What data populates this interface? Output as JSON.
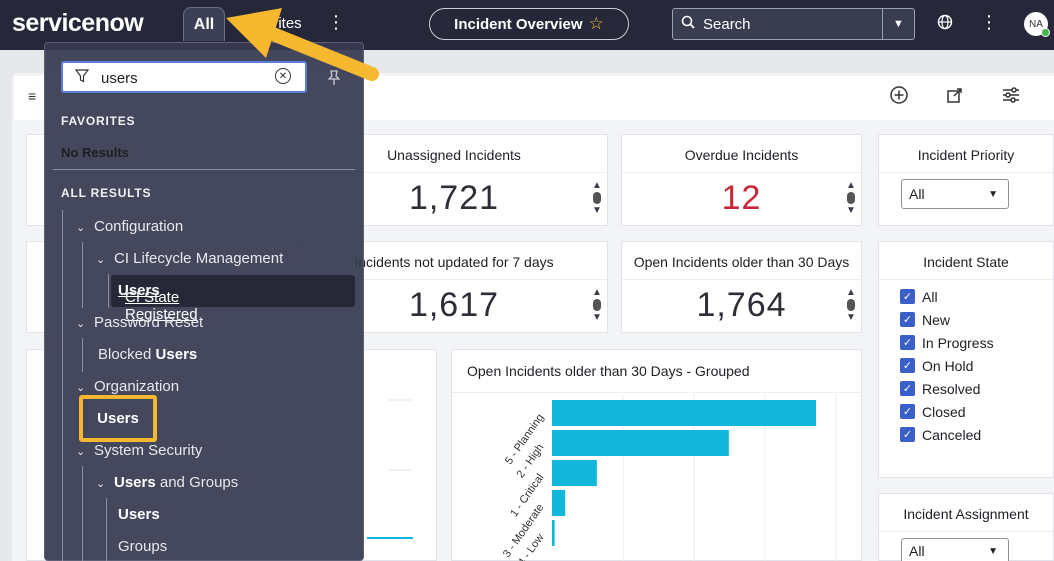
{
  "header": {
    "logo_text": "servicenow",
    "tab_all": "All",
    "tab_favorites": "Favorites",
    "incident_title": "Incident Overview",
    "search_placeholder": "Search",
    "avatar_initials": "NA"
  },
  "toolbar": {},
  "cards": {
    "unassigned": {
      "title": "Unassigned Incidents",
      "value": "1,721"
    },
    "overdue": {
      "title": "Overdue Incidents",
      "value": "12"
    },
    "priority": {
      "title": "Incident Priority",
      "select": "All"
    },
    "not_updated": {
      "title": "Incidents not updated for 7 days",
      "value": "1,617"
    },
    "older30": {
      "title": "Open Incidents older than 30 Days",
      "value": "1,764"
    },
    "state": {
      "title": "Incident State",
      "items": [
        "All",
        "New",
        "In Progress",
        "On Hold",
        "Resolved",
        "Closed",
        "Canceled"
      ]
    },
    "assignment": {
      "title": "Incident Assignment",
      "select": "All"
    }
  },
  "chart_data": {
    "type": "bar",
    "orientation": "horizontal",
    "title": "Open Incidents older than 30 Days - Grouped",
    "categories": [
      "5 - Planning",
      "2 - High",
      "1 - Critical",
      "3 - Moderate",
      "4 - Low"
    ],
    "values": [
      100,
      67,
      17,
      5,
      1
    ],
    "color": "#13b7dc"
  },
  "menu": {
    "filter_value": "users",
    "favorites_header": "FAVORITES",
    "no_results": "No Results",
    "all_results_header": "ALL RESULTS",
    "configuration": "Configuration",
    "ci_lifecycle": "CI Lifecycle Management",
    "ci_state_prefix": "CI State Registered ",
    "ci_state_match": "Users",
    "password_reset": "Password Reset",
    "blocked_prefix": "Blocked ",
    "blocked_match": "Users",
    "organization": "Organization",
    "org_users": "Users",
    "system_security": "System Security",
    "users_groups_match": "Users",
    "users_groups_suffix": " and Groups",
    "ug_users": "Users",
    "ug_groups": "Groups"
  },
  "colors": {
    "highlight": "#f5b82e",
    "arrow": "#f5b82e",
    "bar": "#13b7dc"
  }
}
